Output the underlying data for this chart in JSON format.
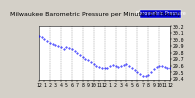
{
  "title": "Milwaukee Barometric Pressure per Minute (24 Hours)",
  "bg_color": "#d4d0c8",
  "plot_bg_color": "#ffffff",
  "dot_color": "#0000ff",
  "legend_color": "#0000cc",
  "grid_color": "#888888",
  "border_color": "#000000",
  "x_min": 0,
  "x_max": 1440,
  "y_min": 29.38,
  "y_max": 30.18,
  "y_ticks": [
    29.4,
    29.5,
    29.6,
    29.7,
    29.8,
    29.9,
    30.0,
    30.1,
    30.2
  ],
  "x_tick_positions": [
    0,
    60,
    120,
    180,
    240,
    300,
    360,
    420,
    480,
    540,
    600,
    660,
    720,
    780,
    840,
    900,
    960,
    1020,
    1080,
    1140,
    1200,
    1260,
    1320,
    1380,
    1440
  ],
  "x_tick_labels": [
    "12",
    "1",
    "2",
    "3",
    "4",
    "5",
    "6",
    "7",
    "8",
    "9",
    "10",
    "11",
    "12",
    "1",
    "2",
    "3",
    "4",
    "5",
    "6",
    "7",
    "8",
    "9",
    "10",
    "11",
    "12"
  ],
  "pressure_data": [
    [
      0,
      30.05
    ],
    [
      30,
      30.03
    ],
    [
      60,
      30.01
    ],
    [
      90,
      29.98
    ],
    [
      120,
      29.95
    ],
    [
      150,
      29.93
    ],
    [
      180,
      29.91
    ],
    [
      210,
      29.9
    ],
    [
      240,
      29.88
    ],
    [
      270,
      29.86
    ],
    [
      300,
      29.88
    ],
    [
      330,
      29.87
    ],
    [
      360,
      29.86
    ],
    [
      390,
      29.83
    ],
    [
      420,
      29.8
    ],
    [
      450,
      29.77
    ],
    [
      480,
      29.74
    ],
    [
      510,
      29.71
    ],
    [
      540,
      29.68
    ],
    [
      570,
      29.65
    ],
    [
      600,
      29.62
    ],
    [
      630,
      29.6
    ],
    [
      660,
      29.58
    ],
    [
      690,
      29.57
    ],
    [
      720,
      29.56
    ],
    [
      750,
      29.57
    ],
    [
      780,
      29.59
    ],
    [
      810,
      29.61
    ],
    [
      840,
      29.6
    ],
    [
      870,
      29.58
    ],
    [
      900,
      29.59
    ],
    [
      930,
      29.61
    ],
    [
      960,
      29.62
    ],
    [
      990,
      29.6
    ],
    [
      1020,
      29.57
    ],
    [
      1050,
      29.53
    ],
    [
      1080,
      29.5
    ],
    [
      1110,
      29.47
    ],
    [
      1140,
      29.45
    ],
    [
      1170,
      29.44
    ],
    [
      1200,
      29.46
    ],
    [
      1230,
      29.5
    ],
    [
      1260,
      29.55
    ],
    [
      1290,
      29.58
    ],
    [
      1320,
      29.6
    ],
    [
      1350,
      29.59
    ],
    [
      1380,
      29.58
    ],
    [
      1410,
      29.57
    ],
    [
      1440,
      29.56
    ]
  ],
  "legend_text": "Barometric Pressure",
  "font_size_title": 4.5,
  "font_size_tick": 3.5,
  "font_size_legend": 3.5,
  "marker_size": 0.8,
  "grid_line_positions": [
    120,
    240,
    360,
    480,
    600,
    720,
    840,
    960,
    1080,
    1200,
    1320
  ]
}
